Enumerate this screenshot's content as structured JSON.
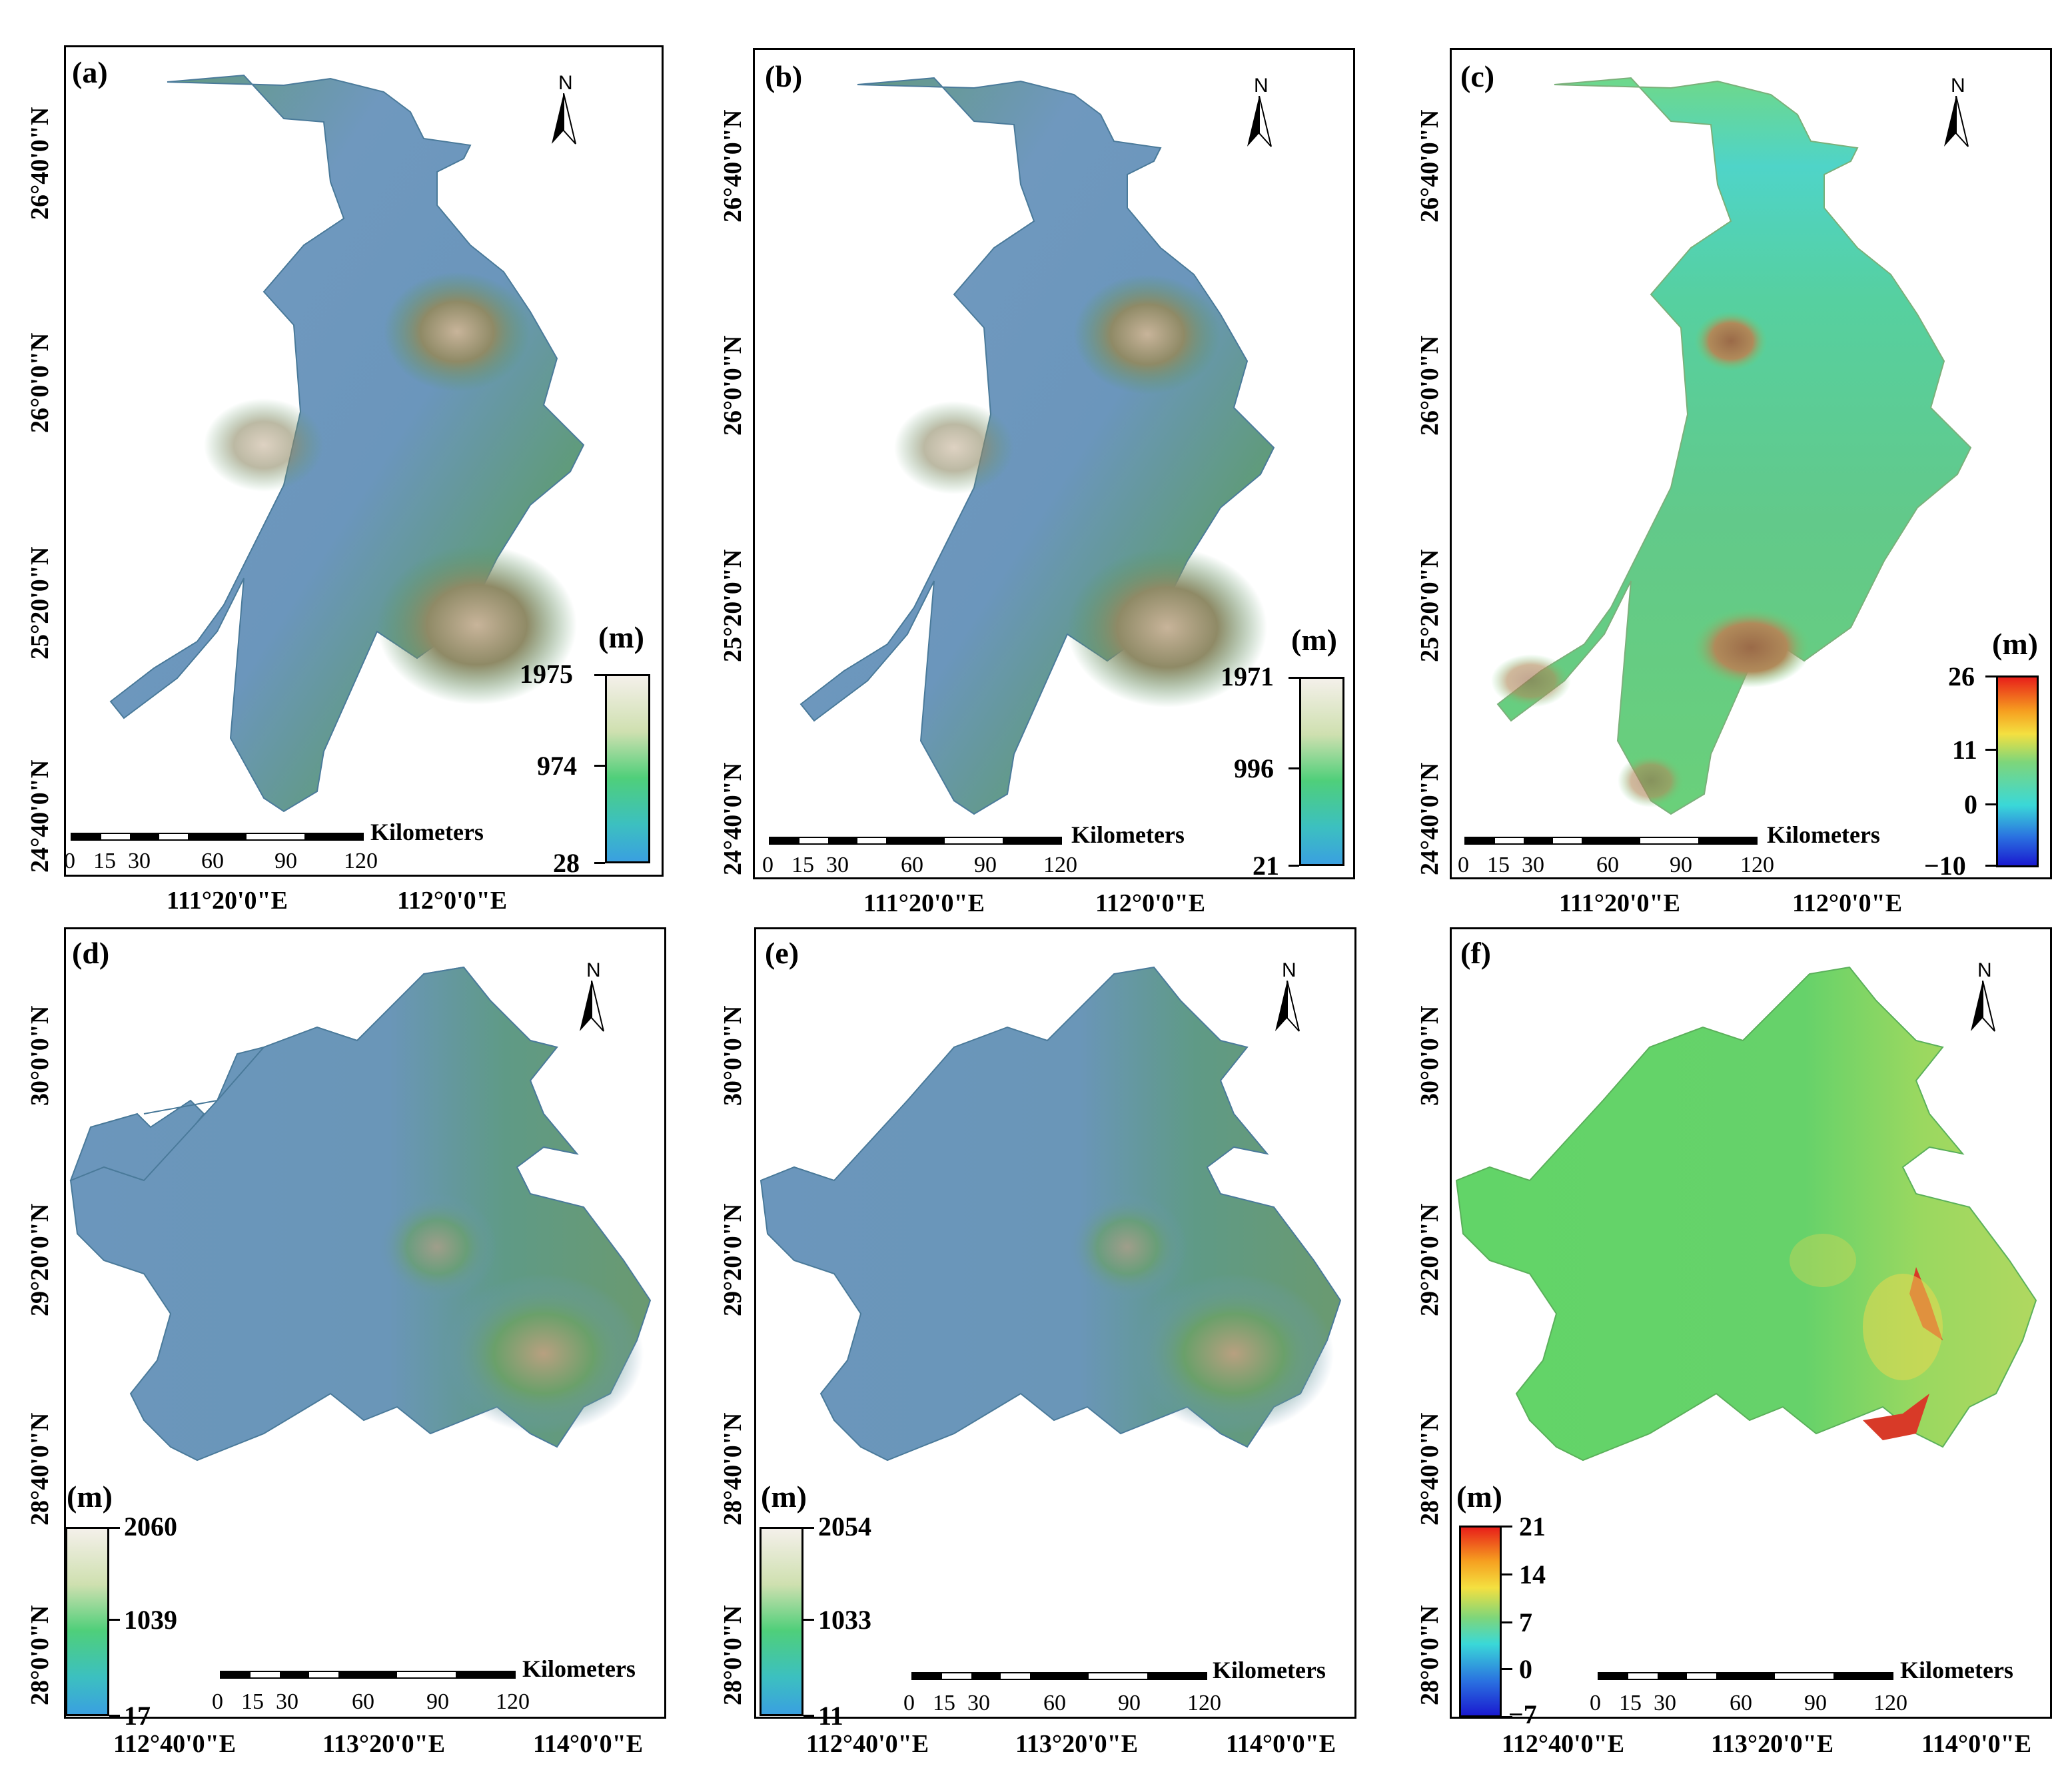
{
  "panels": [
    {
      "id": "a",
      "label": "(a)",
      "lat_ticks": [
        "26°40'0\"N",
        "26°0'0\"N",
        "25°20'0\"N",
        "24°40'0\"N"
      ],
      "lon_ticks": [
        "111°20'0\"E",
        "112°0'0\"E"
      ],
      "unit": "(m)",
      "colorbar": {
        "type": "elevation",
        "max": "1975",
        "mid": "974",
        "min": "28"
      },
      "scale": {
        "ticks": [
          "0",
          "15",
          "30",
          "60",
          "90",
          "120"
        ],
        "unit": "Kilometers"
      },
      "north": "N"
    },
    {
      "id": "b",
      "label": "(b)",
      "lat_ticks": [
        "26°40'0\"N",
        "26°0'0\"N",
        "25°20'0\"N",
        "24°40'0\"N"
      ],
      "lon_ticks": [
        "111°20'0\"E",
        "112°0'0\"E"
      ],
      "unit": "(m)",
      "colorbar": {
        "type": "elevation",
        "max": "1971",
        "mid": "996",
        "min": "21"
      },
      "scale": {
        "ticks": [
          "0",
          "15",
          "30",
          "60",
          "90",
          "120"
        ],
        "unit": "Kilometers"
      },
      "north": "N"
    },
    {
      "id": "c",
      "label": "(c)",
      "lat_ticks": [
        "26°40'0\"N",
        "26°0'0\"N",
        "25°20'0\"N",
        "24°40'0\"N"
      ],
      "lon_ticks": [
        "111°20'0\"E",
        "112°0'0\"E"
      ],
      "unit": "(m)",
      "colorbar": {
        "type": "difference",
        "labels": [
          "26",
          "11",
          "0",
          "−10"
        ]
      },
      "scale": {
        "ticks": [
          "0",
          "15",
          "30",
          "60",
          "90",
          "120"
        ],
        "unit": "Kilometers"
      },
      "north": "N"
    },
    {
      "id": "d",
      "label": "(d)",
      "lat_ticks": [
        "30°0'0\"N",
        "29°20'0\"N",
        "28°40'0\"N",
        "28°0'0\"N"
      ],
      "lon_ticks": [
        "112°40'0\"E",
        "113°20'0\"E",
        "114°0'0\"E"
      ],
      "unit": "(m)",
      "colorbar": {
        "type": "elevation",
        "max": "2060",
        "mid": "1039",
        "min": "17"
      },
      "scale": {
        "ticks": [
          "0",
          "15",
          "30",
          "60",
          "90",
          "120"
        ],
        "unit": "Kilometers"
      },
      "north": "N"
    },
    {
      "id": "e",
      "label": "(e)",
      "lat_ticks": [
        "30°0'0\"N",
        "29°20'0\"N",
        "28°40'0\"N",
        "28°0'0\"N"
      ],
      "lon_ticks": [
        "112°40'0\"E",
        "113°20'0\"E",
        "114°0'0\"E"
      ],
      "unit": "(m)",
      "colorbar": {
        "type": "elevation",
        "max": "2054",
        "mid": "1033",
        "min": "11"
      },
      "scale": {
        "ticks": [
          "0",
          "15",
          "30",
          "60",
          "90",
          "120"
        ],
        "unit": "Kilometers"
      },
      "north": "N"
    },
    {
      "id": "f",
      "label": "(f)",
      "lat_ticks": [
        "30°0'0\"N",
        "29°20'0\"N",
        "28°40'0\"N",
        "28°0'0\"N"
      ],
      "lon_ticks": [
        "112°40'0\"E",
        "113°20'0\"E",
        "114°0'0\"E"
      ],
      "unit": "(m)",
      "colorbar": {
        "type": "difference",
        "labels": [
          "21",
          "14",
          "7",
          "0",
          "−7"
        ]
      },
      "scale": {
        "ticks": [
          "0",
          "15",
          "30",
          "60",
          "90",
          "120"
        ],
        "unit": "Kilometers"
      },
      "north": "N"
    }
  ],
  "colors": {
    "elev_low": "#4a9bd8",
    "elev_mid": "#4fcf7a",
    "elev_high": "#f4f0ea",
    "terrain_blue": "#6b96bc",
    "terrain_green": "#5a9a6a",
    "terrain_brown": "#a8896a",
    "diff_green": "#52d46a",
    "diff_cyan": "#4fd4c8",
    "diff_brown": "#a07850",
    "diff_red": "#d83a28"
  }
}
